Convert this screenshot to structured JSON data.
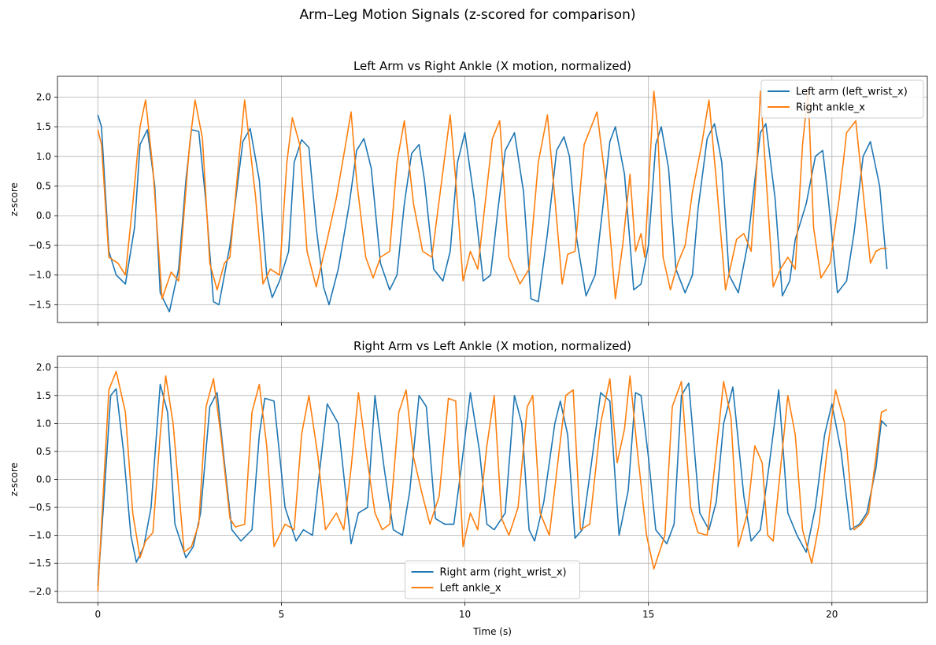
{
  "figure": {
    "suptitle": "Arm–Leg Motion Signals (z-scored for comparison)"
  },
  "chart_data": [
    {
      "type": "line",
      "title": "Left Arm vs Right Ankle (X motion, normalized)",
      "xlabel": "",
      "ylabel": "z-score",
      "xlim": [
        -1.1,
        22.6
      ],
      "ylim": [
        -1.8,
        2.35
      ],
      "xticks": [
        0,
        5,
        10,
        15,
        20
      ],
      "xtick_labels": [
        "",
        "",
        "",
        "",
        ""
      ],
      "yticks": [
        -1.5,
        -1.0,
        -0.5,
        0.0,
        0.5,
        1.0,
        1.5,
        2.0
      ],
      "ytick_labels": [
        "−1.5",
        "−1.0",
        "−0.5",
        "0.0",
        "0.5",
        "1.0",
        "1.5",
        "2.0"
      ],
      "grid": true,
      "legend_position": "upper right",
      "series": [
        {
          "name": "Left arm (left_wrist_x)",
          "color": "#1f77b4",
          "x": [
            0.0,
            0.1,
            0.3,
            0.5,
            0.75,
            1.0,
            1.15,
            1.35,
            1.55,
            1.7,
            1.95,
            2.2,
            2.4,
            2.55,
            2.75,
            2.95,
            3.15,
            3.3,
            3.6,
            3.95,
            4.15,
            4.4,
            4.6,
            4.75,
            4.95,
            5.2,
            5.35,
            5.55,
            5.75,
            5.95,
            6.15,
            6.3,
            6.55,
            6.85,
            7.05,
            7.25,
            7.45,
            7.7,
            7.95,
            8.15,
            8.35,
            8.55,
            8.75,
            8.9,
            9.15,
            9.4,
            9.6,
            9.8,
            10.0,
            10.25,
            10.5,
            10.7,
            10.9,
            11.1,
            11.35,
            11.6,
            11.8,
            12.0,
            12.25,
            12.5,
            12.7,
            12.85,
            13.05,
            13.3,
            13.55,
            13.75,
            13.95,
            14.1,
            14.35,
            14.6,
            14.8,
            15.0,
            15.2,
            15.35,
            15.55,
            15.75,
            16.0,
            16.2,
            16.35,
            16.6,
            16.8,
            17.0,
            17.2,
            17.45,
            17.7,
            17.9,
            18.05,
            18.2,
            18.45,
            18.65,
            18.85,
            19.0,
            19.3,
            19.55,
            19.75,
            19.9,
            20.15,
            20.4,
            20.6,
            20.85,
            21.05,
            21.3,
            21.5
          ],
          "y": [
            1.7,
            1.5,
            -0.6,
            -1.0,
            -1.15,
            -0.2,
            1.2,
            1.45,
            0.5,
            -1.3,
            -1.62,
            -0.9,
            0.6,
            1.45,
            1.42,
            0.2,
            -1.45,
            -1.5,
            -0.5,
            1.25,
            1.47,
            0.6,
            -1.0,
            -1.38,
            -1.1,
            -0.6,
            0.9,
            1.28,
            1.15,
            -0.2,
            -1.2,
            -1.5,
            -0.9,
            0.2,
            1.1,
            1.3,
            0.8,
            -0.8,
            -1.25,
            -1.0,
            0.2,
            1.05,
            1.2,
            0.6,
            -0.9,
            -1.1,
            -0.6,
            0.9,
            1.4,
            0.3,
            -1.1,
            -1.0,
            0.1,
            1.1,
            1.4,
            0.4,
            -1.4,
            -1.45,
            -0.3,
            1.1,
            1.33,
            1.0,
            -0.4,
            -1.35,
            -1.0,
            0.1,
            1.25,
            1.5,
            0.7,
            -1.25,
            -1.15,
            -0.5,
            1.2,
            1.5,
            0.8,
            -0.9,
            -1.3,
            -1.0,
            0.1,
            1.3,
            1.55,
            0.9,
            -1.0,
            -1.3,
            -0.5,
            0.6,
            1.4,
            1.55,
            0.3,
            -1.35,
            -1.1,
            -0.4,
            0.2,
            1.0,
            1.1,
            0.3,
            -1.3,
            -1.1,
            -0.3,
            1.0,
            1.25,
            0.5,
            -0.9
          ],
          "markers": false
        },
        {
          "name": "Right ankle_x",
          "color": "#ff7f0e",
          "x": [
            0.0,
            0.1,
            0.3,
            0.55,
            0.75,
            0.95,
            1.15,
            1.3,
            1.5,
            1.75,
            2.0,
            2.2,
            2.5,
            2.65,
            2.85,
            3.05,
            3.25,
            3.45,
            3.6,
            3.85,
            4.0,
            4.3,
            4.5,
            4.7,
            4.95,
            5.15,
            5.3,
            5.5,
            5.7,
            5.95,
            6.25,
            6.5,
            6.75,
            6.9,
            7.05,
            7.3,
            7.5,
            7.7,
            7.95,
            8.15,
            8.35,
            8.6,
            8.85,
            9.1,
            9.35,
            9.6,
            9.75,
            9.95,
            10.15,
            10.35,
            10.55,
            10.75,
            10.95,
            11.2,
            11.5,
            11.75,
            12.0,
            12.25,
            12.45,
            12.65,
            12.8,
            13.0,
            13.25,
            13.6,
            13.85,
            14.1,
            14.3,
            14.5,
            14.65,
            14.8,
            14.9,
            15.05,
            15.15,
            15.25,
            15.4,
            15.6,
            15.8,
            16.0,
            16.2,
            16.45,
            16.65,
            16.85,
            17.1,
            17.4,
            17.6,
            17.8,
            17.95,
            18.05,
            18.2,
            18.4,
            18.6,
            18.8,
            19.0,
            19.2,
            19.35,
            19.5,
            19.7,
            19.95,
            20.2,
            20.4,
            20.65,
            20.85,
            21.05,
            21.2,
            21.35,
            21.5
          ],
          "y": [
            1.45,
            1.2,
            -0.7,
            -0.8,
            -1.0,
            0.2,
            1.5,
            1.95,
            0.8,
            -1.4,
            -0.95,
            -1.1,
            1.2,
            1.95,
            1.3,
            -0.8,
            -1.25,
            -0.8,
            -0.7,
            1.0,
            1.95,
            0.3,
            -1.15,
            -0.9,
            -1.0,
            0.9,
            1.65,
            1.2,
            -0.6,
            -1.2,
            -0.4,
            0.3,
            1.2,
            1.75,
            0.6,
            -0.7,
            -1.05,
            -0.7,
            -0.6,
            0.9,
            1.6,
            0.2,
            -0.6,
            -0.7,
            0.5,
            1.7,
            0.6,
            -1.1,
            -0.6,
            -0.9,
            0.2,
            1.3,
            1.6,
            -0.7,
            -1.15,
            -0.9,
            0.9,
            1.7,
            0.3,
            -1.15,
            -0.65,
            -0.6,
            1.2,
            1.75,
            0.5,
            -1.4,
            -0.5,
            0.7,
            -0.6,
            -0.3,
            -0.7,
            1.0,
            2.1,
            1.5,
            -0.7,
            -1.25,
            -0.8,
            -0.5,
            0.4,
            1.2,
            1.95,
            0.6,
            -1.25,
            -0.4,
            -0.3,
            -0.6,
            0.8,
            2.1,
            0.7,
            -1.2,
            -0.9,
            -0.7,
            -0.9,
            1.2,
            2.1,
            -0.2,
            -1.05,
            -0.8,
            0.3,
            1.4,
            1.6,
            0.4,
            -0.8,
            -0.6,
            -0.55,
            -0.55
          ],
          "markers": false
        }
      ]
    },
    {
      "type": "line",
      "title": "Right Arm vs Left Ankle (X motion, normalized)",
      "xlabel": "Time (s)",
      "ylabel": "z-score",
      "xlim": [
        -1.1,
        22.6
      ],
      "ylim": [
        -2.2,
        2.2
      ],
      "xticks": [
        0,
        5,
        10,
        15,
        20
      ],
      "xtick_labels": [
        "0",
        "5",
        "10",
        "15",
        "20"
      ],
      "yticks": [
        -2.0,
        -1.5,
        -1.0,
        -0.5,
        0.0,
        0.5,
        1.0,
        1.5,
        2.0
      ],
      "ytick_labels": [
        "−2.0",
        "−1.5",
        "−1.0",
        "−0.5",
        "0.0",
        "0.5",
        "1.0",
        "1.5",
        "2.0"
      ],
      "grid": true,
      "legend_position": "lower center",
      "series": [
        {
          "name": "Right arm (right_wrist_x)",
          "color": "#1f77b4",
          "x": [
            0.0,
            0.15,
            0.35,
            0.5,
            0.7,
            0.9,
            1.05,
            1.25,
            1.45,
            1.7,
            1.9,
            2.1,
            2.4,
            2.6,
            2.8,
            3.05,
            3.25,
            3.45,
            3.65,
            3.9,
            4.2,
            4.4,
            4.55,
            4.8,
            5.1,
            5.4,
            5.6,
            5.85,
            6.0,
            6.25,
            6.55,
            6.9,
            7.1,
            7.35,
            7.55,
            7.8,
            8.05,
            8.3,
            8.5,
            8.75,
            8.95,
            9.2,
            9.45,
            9.7,
            9.9,
            10.15,
            10.4,
            10.6,
            10.8,
            11.1,
            11.35,
            11.55,
            11.75,
            11.9,
            12.15,
            12.45,
            12.6,
            12.8,
            13.0,
            13.2,
            13.45,
            13.7,
            13.95,
            14.2,
            14.45,
            14.65,
            14.8,
            15.0,
            15.2,
            15.5,
            15.7,
            15.9,
            16.1,
            16.4,
            16.65,
            16.85,
            17.05,
            17.3,
            17.6,
            17.8,
            18.05,
            18.3,
            18.55,
            18.8,
            19.05,
            19.3,
            19.55,
            19.8,
            20.0,
            20.25,
            20.5,
            20.75,
            20.95,
            21.2,
            21.35,
            21.5
          ],
          "y": [
            -1.9,
            -0.5,
            1.5,
            1.62,
            0.5,
            -1.0,
            -1.48,
            -1.2,
            -0.5,
            1.7,
            1.2,
            -0.8,
            -1.4,
            -1.2,
            -0.6,
            1.3,
            1.55,
            0.3,
            -0.9,
            -1.1,
            -0.9,
            0.8,
            1.45,
            1.4,
            -0.5,
            -1.1,
            -0.9,
            -1.0,
            -0.1,
            1.35,
            1.0,
            -1.15,
            -0.6,
            -0.5,
            1.5,
            0.2,
            -0.9,
            -1.0,
            -0.2,
            1.5,
            1.3,
            -0.7,
            -0.8,
            -0.8,
            0.2,
            1.55,
            0.5,
            -0.8,
            -0.9,
            -0.6,
            1.5,
            1.0,
            -0.9,
            -1.1,
            -0.4,
            1.0,
            1.4,
            0.8,
            -1.05,
            -0.9,
            0.3,
            1.55,
            1.4,
            -1.0,
            -0.2,
            1.55,
            1.5,
            0.4,
            -0.9,
            -1.15,
            -0.8,
            1.5,
            1.72,
            -0.6,
            -0.9,
            -0.4,
            1.0,
            1.65,
            -0.3,
            -1.1,
            -0.9,
            0.3,
            1.6,
            -0.6,
            -1.0,
            -1.3,
            -0.5,
            0.8,
            1.35,
            0.5,
            -0.9,
            -0.8,
            -0.6,
            0.2,
            1.05,
            0.95
          ],
          "markers": false
        },
        {
          "name": "Left ankle_x",
          "color": "#ff7f0e",
          "x": [
            0.0,
            0.15,
            0.3,
            0.5,
            0.75,
            0.95,
            1.15,
            1.3,
            1.5,
            1.7,
            1.85,
            2.05,
            2.35,
            2.55,
            2.75,
            2.95,
            3.15,
            3.35,
            3.6,
            3.75,
            4.0,
            4.2,
            4.4,
            4.6,
            4.8,
            5.1,
            5.35,
            5.55,
            5.75,
            6.0,
            6.2,
            6.5,
            6.7,
            6.9,
            7.1,
            7.35,
            7.55,
            7.75,
            7.95,
            8.2,
            8.4,
            8.6,
            8.85,
            9.05,
            9.3,
            9.55,
            9.75,
            9.95,
            10.15,
            10.35,
            10.6,
            10.8,
            11.0,
            11.2,
            11.45,
            11.7,
            11.85,
            12.05,
            12.3,
            12.55,
            12.75,
            12.95,
            13.15,
            13.4,
            13.7,
            13.95,
            14.15,
            14.35,
            14.5,
            14.7,
            14.95,
            15.15,
            15.45,
            15.65,
            15.9,
            16.15,
            16.35,
            16.6,
            16.85,
            17.05,
            17.25,
            17.45,
            17.7,
            17.9,
            18.1,
            18.25,
            18.4,
            18.6,
            18.8,
            19.0,
            19.2,
            19.45,
            19.65,
            19.85,
            20.1,
            20.35,
            20.6,
            20.8,
            21.0,
            21.2,
            21.35,
            21.5
          ],
          "y": [
            -2.0,
            -0.2,
            1.6,
            1.93,
            1.2,
            -0.6,
            -1.4,
            -1.1,
            -0.95,
            0.8,
            1.85,
            1.0,
            -1.3,
            -1.2,
            -0.8,
            1.3,
            1.8,
            0.8,
            -0.7,
            -0.85,
            -0.8,
            1.2,
            1.7,
            0.6,
            -1.2,
            -0.8,
            -0.9,
            0.8,
            1.5,
            0.4,
            -0.9,
            -0.6,
            -0.9,
            0.2,
            1.55,
            0.3,
            -0.6,
            -0.9,
            -0.8,
            1.2,
            1.6,
            0.4,
            -0.3,
            -0.8,
            -0.3,
            1.45,
            1.4,
            -1.2,
            -0.6,
            -0.9,
            0.6,
            1.5,
            -0.7,
            -1.0,
            -0.5,
            1.3,
            1.5,
            -0.6,
            -1.0,
            0.4,
            1.5,
            1.6,
            -0.9,
            -0.8,
            1.0,
            1.8,
            0.3,
            0.9,
            1.85,
            0.5,
            -1.0,
            -1.6,
            -1.0,
            1.3,
            1.75,
            -0.5,
            -0.95,
            -1.0,
            0.5,
            1.75,
            1.1,
            -1.2,
            -0.6,
            0.6,
            0.3,
            -1.0,
            -1.1,
            0.2,
            1.5,
            0.8,
            -0.9,
            -1.5,
            -0.8,
            0.4,
            1.6,
            1.0,
            -0.9,
            -0.8,
            -0.6,
            0.4,
            1.2,
            1.25
          ],
          "markers": false
        }
      ]
    }
  ]
}
